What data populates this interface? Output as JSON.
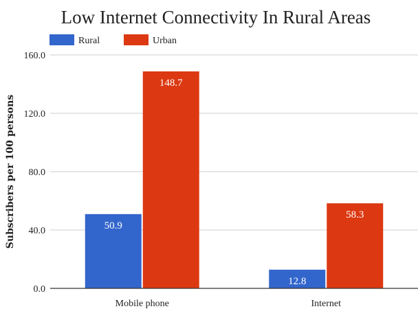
{
  "chart_data": {
    "type": "bar",
    "title": "Low Internet Connectivity In Rural Areas",
    "ylabel": "Subscribers per 100 persons",
    "xlabel": "",
    "categories": [
      "Mobile phone",
      "Internet"
    ],
    "series": [
      {
        "name": "Rural",
        "values": [
          50.9,
          12.8
        ],
        "color": "#3366cc"
      },
      {
        "name": "Urban",
        "values": [
          148.7,
          58.3
        ],
        "color": "#dc3912"
      }
    ],
    "ylim": [
      0,
      160
    ],
    "yticks": [
      "0.0",
      "40.0",
      "80.0",
      "120.0",
      "160.0"
    ],
    "bar_labels": [
      [
        "50.9",
        "12.8"
      ],
      [
        "148.7",
        "58.3"
      ]
    ],
    "legend_position": "top-left",
    "grid": true
  }
}
